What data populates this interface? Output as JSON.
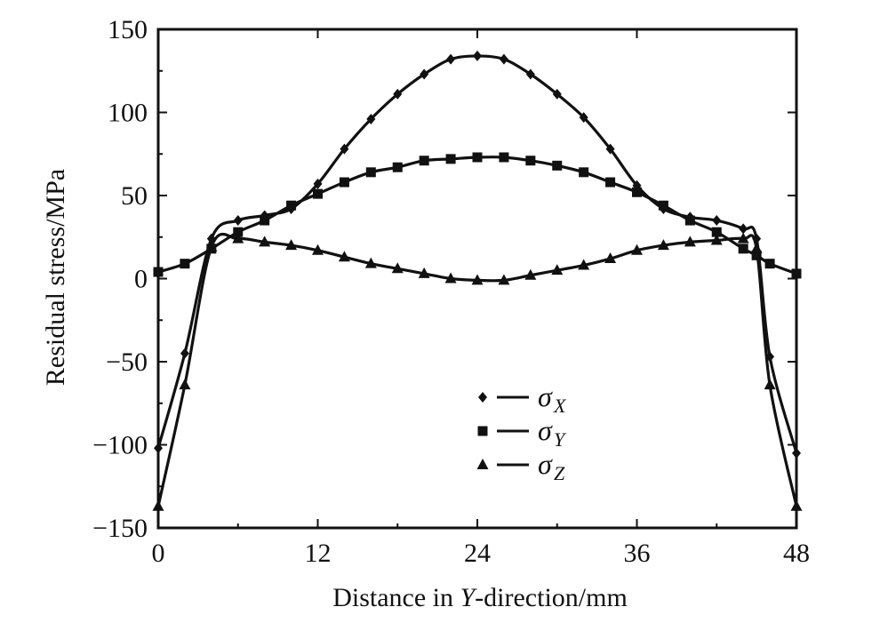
{
  "chart_data": {
    "type": "line",
    "title": "",
    "xlabel_prefix": "Distance in ",
    "xlabel_var": "Y",
    "xlabel_suffix": "-direction/mm",
    "ylabel": "Residual stress/MPa",
    "xlim": [
      0,
      48
    ],
    "ylim": [
      -150,
      150
    ],
    "xticks": [
      0,
      12,
      24,
      36,
      48
    ],
    "yticks": [
      -150,
      -100,
      -50,
      0,
      50,
      100,
      150
    ],
    "ytick_labels": [
      "−150",
      "−100",
      "−50",
      "0",
      "50",
      "100",
      "150"
    ],
    "grid": false,
    "legend_position": "lower-center",
    "x": [
      0,
      2,
      4,
      6,
      8,
      10,
      12,
      14,
      16,
      18,
      20,
      22,
      24,
      26,
      28,
      30,
      32,
      34,
      36,
      38,
      40,
      42,
      44,
      45,
      46,
      48
    ],
    "series": [
      {
        "symbol": "σ",
        "subscript": "X",
        "marker": "diamond",
        "color": "#111111",
        "values": [
          -102,
          -45,
          24,
          35,
          38,
          42,
          57,
          78,
          96,
          111,
          123,
          132,
          134,
          132,
          123,
          111,
          97,
          78,
          56,
          42,
          37,
          35,
          30,
          24,
          -47,
          -105
        ]
      },
      {
        "symbol": "σ",
        "subscript": "Y",
        "marker": "square",
        "color": "#111111",
        "values": [
          4,
          9,
          18,
          28,
          35,
          44,
          51,
          58,
          64,
          67,
          71,
          72,
          73,
          73,
          71,
          68,
          64,
          58,
          52,
          44,
          35,
          28,
          18,
          14,
          9,
          3
        ]
      },
      {
        "symbol": "σ",
        "subscript": "Z",
        "marker": "triangle",
        "color": "#111111",
        "values": [
          -137,
          -64,
          19,
          24,
          22,
          20,
          17,
          13,
          9,
          6,
          3,
          0,
          -1,
          -1,
          2,
          5,
          8,
          12,
          17,
          20,
          22,
          23,
          24,
          18,
          -64,
          -137
        ]
      }
    ]
  }
}
